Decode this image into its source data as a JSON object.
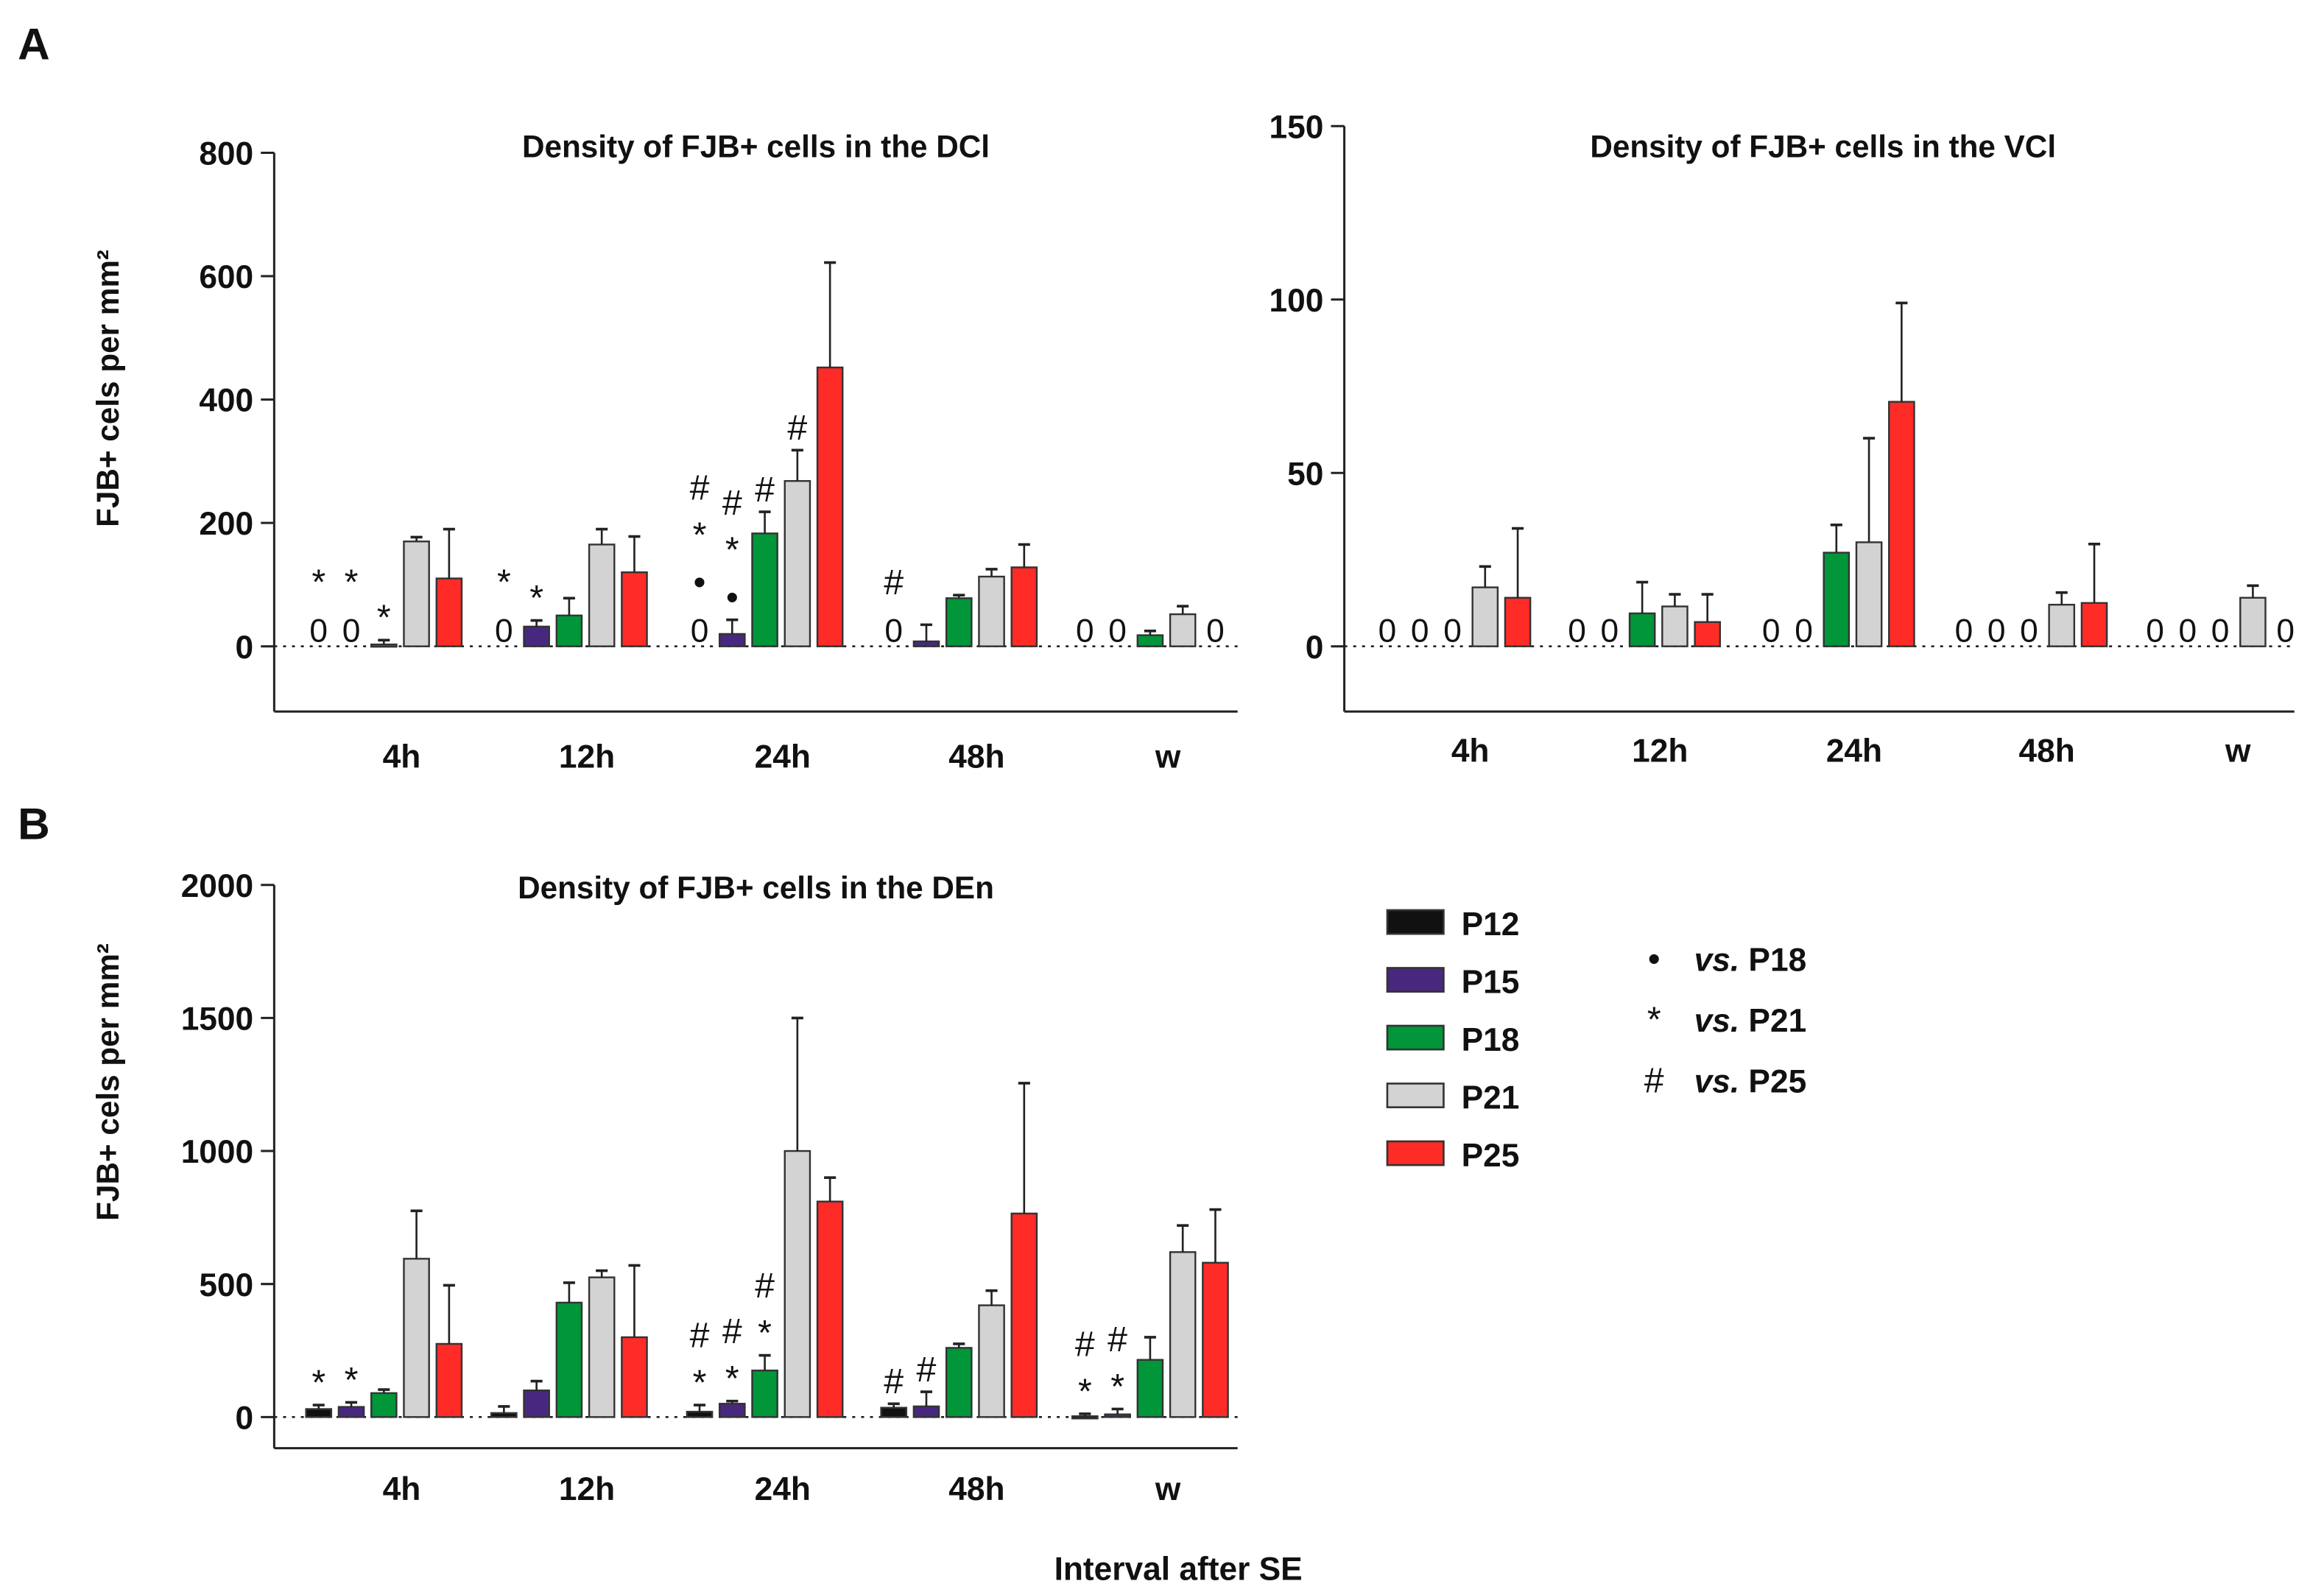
{
  "panel_labels": [
    "A",
    "B"
  ],
  "xlabel": "Interval after SE",
  "series_names": [
    "P12",
    "P15",
    "P18",
    "P21",
    "P25"
  ],
  "series_colors": [
    "#111111",
    "#47287e",
    "#009639",
    "#d3d3d3",
    "#fe2b27"
  ],
  "significance_legend": [
    {
      "symbol": "•",
      "prefix": "vs.",
      "label": "P18"
    },
    {
      "symbol": "*",
      "prefix": "vs.",
      "label": "P21"
    },
    {
      "symbol": "#",
      "prefix": "vs.",
      "label": "P25"
    }
  ],
  "zero_label": "0",
  "chart_data": [
    {
      "type": "bar",
      "title": "Density of FJB+ cells in the DCl",
      "ylabel": "FJB+ cels per mm²",
      "xlabel": "",
      "categories": [
        "4h",
        "12h",
        "24h",
        "48h",
        "w"
      ],
      "ylim": [
        -105,
        800
      ],
      "yticks": [
        0,
        200,
        400,
        600,
        800
      ],
      "series": [
        {
          "name": "P12",
          "values": [
            0,
            0,
            0,
            0,
            0
          ],
          "err_top": [
            null,
            null,
            null,
            null,
            null
          ],
          "zero_shown": [
            true,
            true,
            true,
            true,
            true
          ]
        },
        {
          "name": "P15",
          "values": [
            0,
            32,
            20,
            8,
            0
          ],
          "err_top": [
            null,
            42,
            43,
            35,
            null
          ],
          "zero_shown": [
            true,
            false,
            false,
            false,
            true
          ]
        },
        {
          "name": "P18",
          "values": [
            3,
            50,
            183,
            78,
            18
          ],
          "err_top": [
            10,
            78,
            218,
            83,
            25
          ],
          "zero_shown": [
            false,
            false,
            false,
            false,
            false
          ]
        },
        {
          "name": "P21",
          "values": [
            170,
            165,
            268,
            113,
            52
          ],
          "err_top": [
            177,
            190,
            318,
            125,
            65
          ],
          "zero_shown": [
            false,
            false,
            false,
            false,
            false
          ]
        },
        {
          "name": "P25",
          "values": [
            110,
            120,
            452,
            128,
            0
          ],
          "err_top": [
            190,
            178,
            622,
            165,
            null
          ],
          "zero_shown": [
            false,
            false,
            false,
            false,
            true
          ]
        }
      ],
      "annotations": [
        {
          "category": "4h",
          "series": "P12",
          "marks": [
            "*"
          ]
        },
        {
          "category": "4h",
          "series": "P15",
          "marks": [
            "*"
          ]
        },
        {
          "category": "4h",
          "series": "P18",
          "marks": [
            "*"
          ]
        },
        {
          "category": "12h",
          "series": "P12",
          "marks": [
            "*"
          ]
        },
        {
          "category": "12h",
          "series": "P15",
          "marks": [
            "*"
          ]
        },
        {
          "category": "24h",
          "series": "P12",
          "marks": [
            "•",
            "*",
            "#"
          ]
        },
        {
          "category": "24h",
          "series": "P15",
          "marks": [
            "•",
            "*",
            "#"
          ]
        },
        {
          "category": "24h",
          "series": "P18",
          "marks": [
            "#"
          ]
        },
        {
          "category": "24h",
          "series": "P21",
          "marks": [
            "#"
          ]
        },
        {
          "category": "48h",
          "series": "P12",
          "marks": [
            "#"
          ]
        }
      ]
    },
    {
      "type": "bar",
      "title": "Density of FJB+ cells in the VCl",
      "ylabel": "",
      "xlabel": "",
      "categories": [
        "4h",
        "12h",
        "24h",
        "48h",
        "w"
      ],
      "ylim": [
        -19,
        150
      ],
      "yticks": [
        0,
        50,
        100,
        150
      ],
      "series": [
        {
          "name": "P12",
          "values": [
            0,
            0,
            0,
            0,
            0
          ],
          "err_top": [
            null,
            null,
            null,
            null,
            null
          ],
          "zero_shown": [
            true,
            true,
            true,
            true,
            true
          ]
        },
        {
          "name": "P15",
          "values": [
            0,
            0,
            0,
            0,
            0
          ],
          "err_top": [
            null,
            null,
            null,
            null,
            null
          ],
          "zero_shown": [
            true,
            true,
            true,
            true,
            true
          ]
        },
        {
          "name": "P18",
          "values": [
            0,
            9.5,
            27,
            0,
            0
          ],
          "err_top": [
            null,
            18.5,
            35,
            null,
            null
          ],
          "zero_shown": [
            true,
            false,
            false,
            true,
            true
          ]
        },
        {
          "name": "P21",
          "values": [
            17,
            11.5,
            30,
            12,
            14
          ],
          "err_top": [
            23,
            15,
            60,
            15.5,
            17.5
          ],
          "zero_shown": [
            false,
            false,
            false,
            false,
            false
          ]
        },
        {
          "name": "P25",
          "values": [
            14,
            7,
            70.5,
            12.5,
            0
          ],
          "err_top": [
            34,
            15,
            99,
            29.5,
            null
          ],
          "zero_shown": [
            false,
            false,
            false,
            false,
            true
          ]
        }
      ],
      "annotations": []
    },
    {
      "type": "bar",
      "title": "Density of FJB+ cells in the DEn",
      "ylabel": "FJB+ cels per mm²",
      "xlabel": "Interval after SE",
      "categories": [
        "4h",
        "12h",
        "24h",
        "48h",
        "w"
      ],
      "ylim": [
        -115,
        2000
      ],
      "yticks": [
        0,
        500,
        1000,
        1500,
        2000
      ],
      "series": [
        {
          "name": "P12",
          "values": [
            30,
            15,
            20,
            35,
            3
          ],
          "err_top": [
            45,
            40,
            45,
            50,
            12
          ],
          "zero_shown": [
            false,
            false,
            false,
            false,
            false
          ]
        },
        {
          "name": "P15",
          "values": [
            38,
            100,
            50,
            40,
            10
          ],
          "err_top": [
            55,
            135,
            60,
            95,
            30
          ],
          "zero_shown": [
            false,
            false,
            false,
            false,
            false
          ]
        },
        {
          "name": "P18",
          "values": [
            90,
            430,
            175,
            260,
            215
          ],
          "err_top": [
            103,
            505,
            232,
            275,
            300
          ],
          "zero_shown": [
            false,
            false,
            false,
            false,
            false
          ]
        },
        {
          "name": "P21",
          "values": [
            595,
            525,
            1000,
            420,
            620
          ],
          "err_top": [
            775,
            550,
            1500,
            475,
            720
          ],
          "zero_shown": [
            false,
            false,
            false,
            false,
            false
          ]
        },
        {
          "name": "P25",
          "values": [
            275,
            300,
            810,
            765,
            580
          ],
          "err_top": [
            495,
            570,
            900,
            1255,
            780
          ],
          "zero_shown": [
            false,
            false,
            false,
            false,
            false
          ]
        }
      ],
      "annotations": [
        {
          "category": "4h",
          "series": "P12",
          "marks": [
            "*"
          ]
        },
        {
          "category": "4h",
          "series": "P15",
          "marks": [
            "*"
          ]
        },
        {
          "category": "24h",
          "series": "P12",
          "marks": [
            "*",
            "#"
          ]
        },
        {
          "category": "24h",
          "series": "P15",
          "marks": [
            "*",
            "#"
          ]
        },
        {
          "category": "24h",
          "series": "P18",
          "marks": [
            "*",
            "#"
          ]
        },
        {
          "category": "48h",
          "series": "P12",
          "marks": [
            "#"
          ]
        },
        {
          "category": "48h",
          "series": "P15",
          "marks": [
            "#"
          ]
        },
        {
          "category": "w",
          "series": "P12",
          "marks": [
            "*",
            "#"
          ]
        },
        {
          "category": "w",
          "series": "P15",
          "marks": [
            "*",
            "#"
          ]
        }
      ]
    }
  ]
}
